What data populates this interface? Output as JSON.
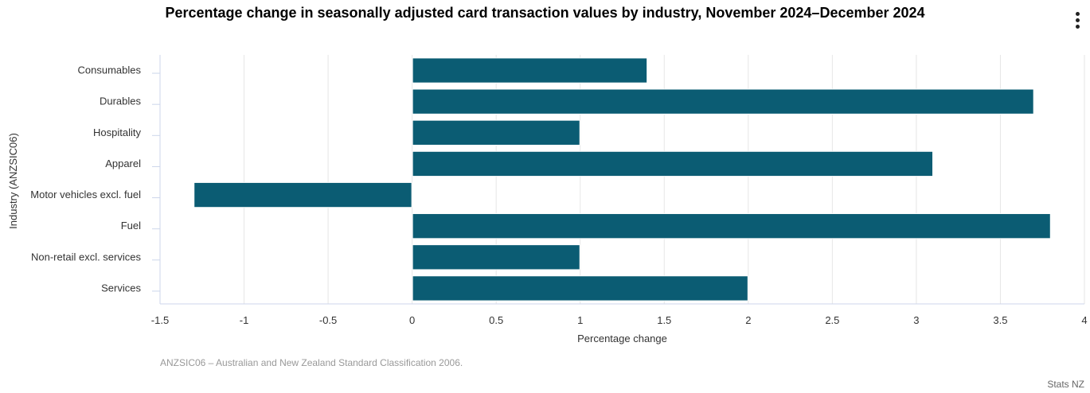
{
  "chart_data": {
    "type": "bar",
    "orientation": "horizontal",
    "title": "Percentage change in seasonally adjusted card transaction values by industry, November 2024–December 2024",
    "xlabel": "Percentage change",
    "ylabel": "Industry (ANZSIC06)",
    "categories": [
      "Consumables",
      "Durables",
      "Hospitality",
      "Apparel",
      "Motor vehicles excl. fuel",
      "Fuel",
      "Non-retail excl. services",
      "Services"
    ],
    "values": [
      1.4,
      3.7,
      1.0,
      3.1,
      -1.3,
      3.8,
      1.0,
      2.0
    ],
    "xlim": [
      -1.5,
      4
    ],
    "xticks": [
      -1.5,
      -1,
      -0.5,
      0,
      0.5,
      1,
      1.5,
      2,
      2.5,
      3,
      3.5,
      4
    ],
    "xtick_labels": [
      "-1.5",
      "-1",
      "-0.5",
      "0",
      "0.5",
      "1",
      "1.5",
      "2",
      "2.5",
      "3",
      "3.5",
      "4"
    ],
    "grid": true,
    "legend": "none",
    "bar_color": "#0b5c73",
    "caption": "ANZSIC06 – Australian and New Zealand Standard Classification 2006.",
    "credit": "Stats NZ"
  }
}
